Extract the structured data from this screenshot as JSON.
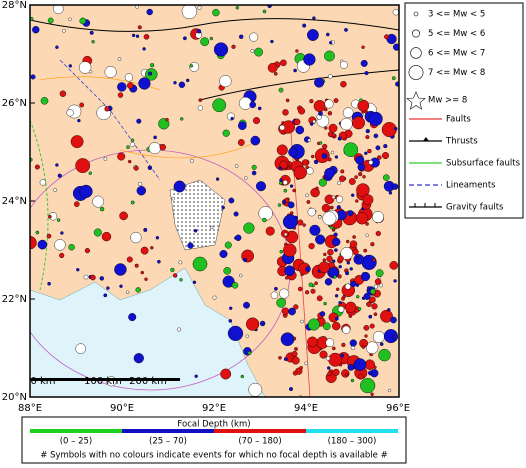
{
  "map": {
    "lat_labels": [
      "28°N",
      "26°N",
      "24°N",
      "22°N",
      "20°N"
    ],
    "lon_labels": [
      "88°E",
      "90°E",
      "92°E",
      "94°E",
      "96°E"
    ],
    "scale_bar": [
      "0 km",
      "100 km",
      "200 km"
    ]
  },
  "legend": {
    "magnitudes": [
      "3 <= Mw < 5",
      "5 <= Mw < 6",
      "6 <= Mw < 7",
      "7 <= Mw < 8",
      "Mw >= 8"
    ],
    "lines": [
      "Faults",
      "Thrusts",
      "Subsurface faults",
      "Lineaments",
      "Gravity faults"
    ]
  },
  "depth_bar": {
    "title": "Focal Depth (km)",
    "ranges": [
      "(0 – 25)",
      "(25 – 70)",
      "(70 – 180)",
      "(180 – 300)"
    ],
    "note": "# Symbols with no colours indicate events for which no focal depth is available #"
  }
}
